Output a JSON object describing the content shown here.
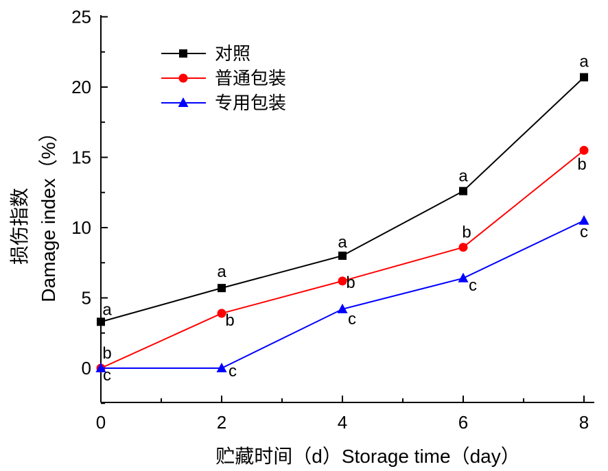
{
  "chart_data": {
    "type": "line",
    "title": "",
    "xlabel": "贮藏时间（d）Storage time（day）",
    "ylabel": "损伤指数 Damage index（%）",
    "ylabel_cn": "损伤指数",
    "ylabel_en": "Damage index（%）",
    "x": [
      0,
      2,
      4,
      6,
      8
    ],
    "xlim": [
      0,
      8.2
    ],
    "ylim": [
      -2.5,
      25
    ],
    "x_ticks": [
      "0",
      "2",
      "4",
      "6",
      "8"
    ],
    "y_ticks": [
      "0",
      "5",
      "10",
      "15",
      "20",
      "25"
    ],
    "grid": false,
    "legend_position": "top-left",
    "series": [
      {
        "name": "对照",
        "color": "#000000",
        "marker": "square",
        "values": [
          3.3,
          5.7,
          8.0,
          12.6,
          20.7
        ],
        "labels": [
          "a",
          "a",
          "a",
          "a",
          "a"
        ]
      },
      {
        "name": "普通包装",
        "color": "#ff0000",
        "marker": "circle",
        "values": [
          0.0,
          3.9,
          6.2,
          8.6,
          15.5
        ],
        "labels": [
          "b",
          "b",
          "b",
          "b",
          "b"
        ]
      },
      {
        "name": "专用包装",
        "color": "#0000ff",
        "marker": "triangle",
        "values": [
          0.0,
          0.0,
          4.2,
          6.4,
          10.5
        ],
        "labels": [
          "c",
          "c",
          "c",
          "c",
          "c"
        ]
      }
    ]
  }
}
